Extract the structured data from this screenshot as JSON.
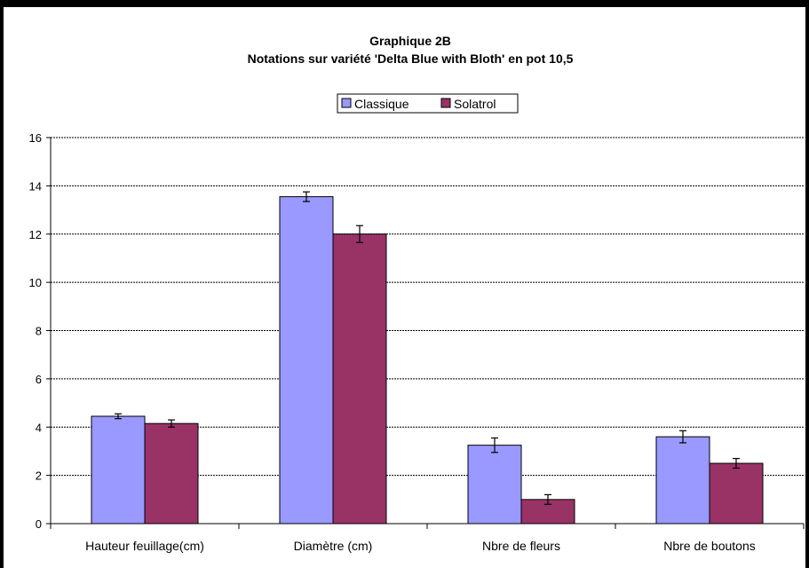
{
  "chart_data": {
    "type": "bar",
    "title": "Graphique 2B",
    "subtitle": "Notations sur variété 'Delta Blue with Bloth' en pot 10,5",
    "xlabel": "",
    "ylabel": "",
    "ylim": [
      0,
      16
    ],
    "yticks": [
      0,
      2,
      4,
      6,
      8,
      10,
      12,
      14,
      16
    ],
    "grid": true,
    "legend_position": "top-center",
    "categories": [
      "Hauteur feuillage(cm)",
      "Diamètre (cm)",
      "Nbre de fleurs",
      "Nbre de boutons"
    ],
    "series": [
      {
        "name": "Classique",
        "color": "#9999ff",
        "values": [
          4.45,
          13.55,
          3.25,
          3.6
        ],
        "errors": [
          0.1,
          0.2,
          0.3,
          0.25
        ]
      },
      {
        "name": "Solatrol",
        "color": "#993366",
        "values": [
          4.15,
          12.0,
          1.0,
          2.5
        ],
        "errors": [
          0.15,
          0.35,
          0.2,
          0.2
        ]
      }
    ]
  }
}
